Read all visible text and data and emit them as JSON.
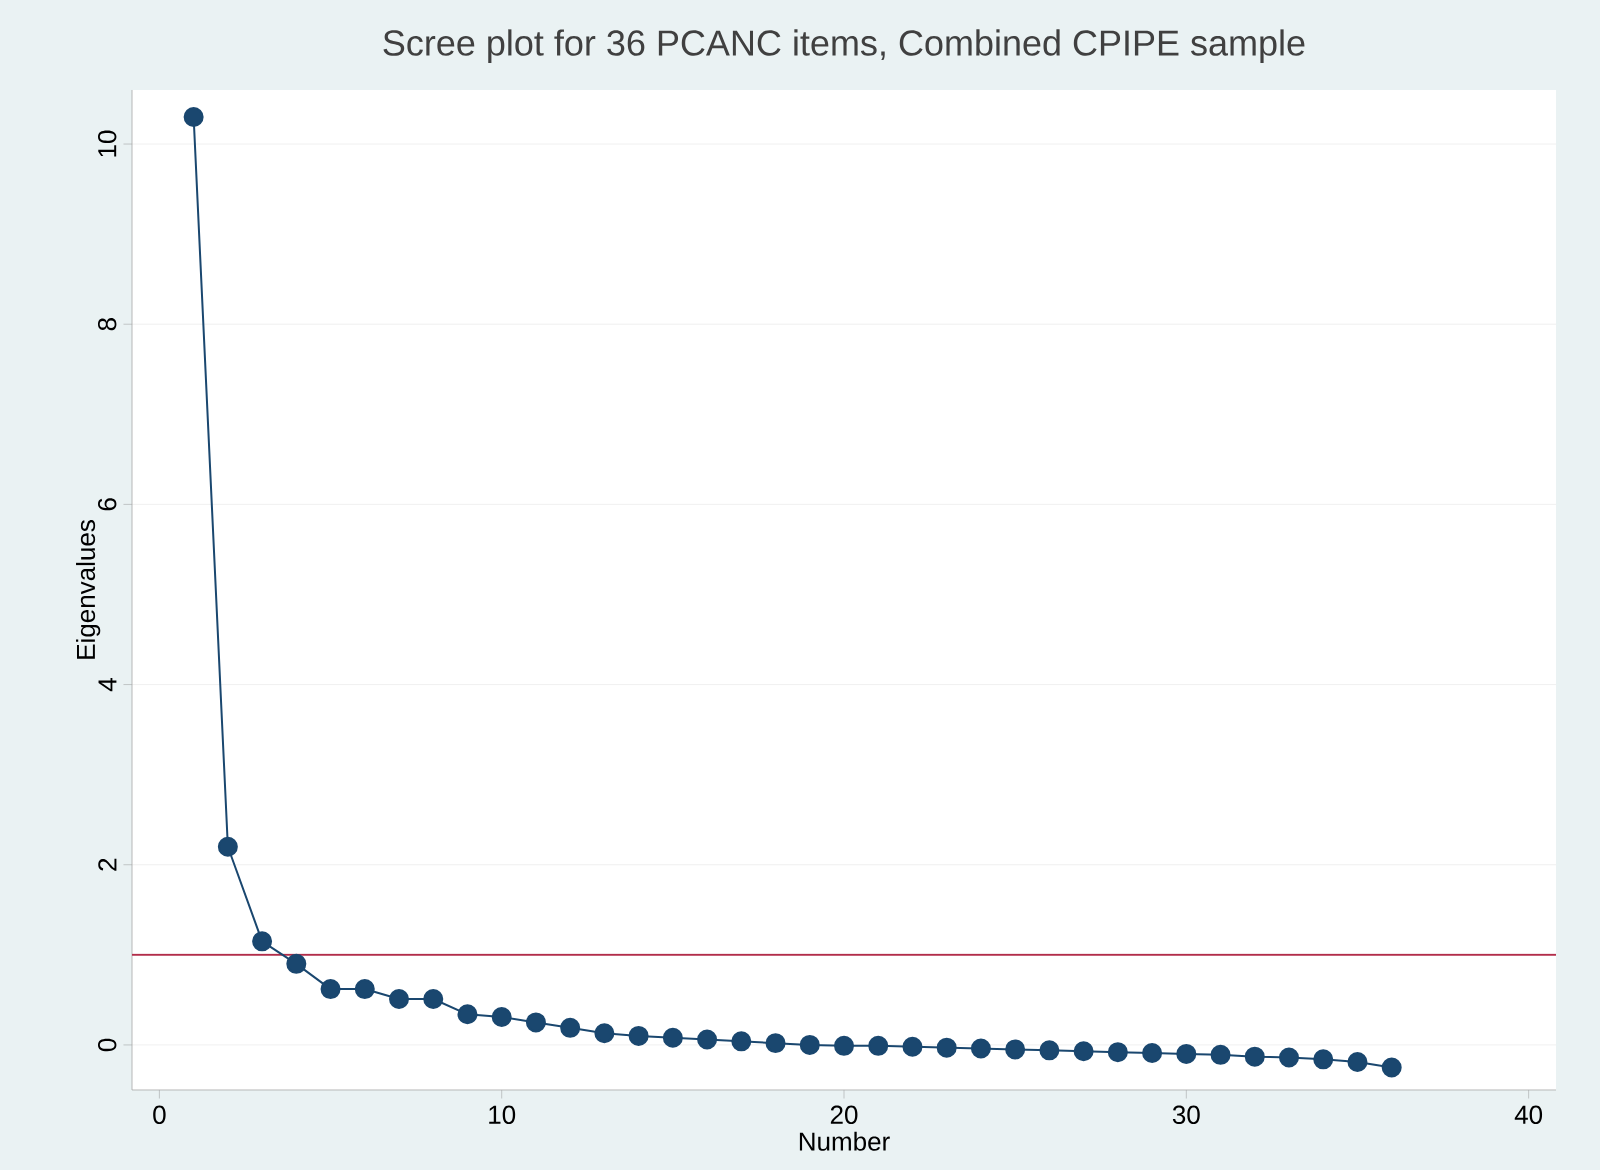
{
  "chart_data": {
    "type": "line",
    "title": "Scree plot for 36 PCANC items, Combined CPIPE sample",
    "xlabel": "Number",
    "ylabel": "Eigenvalues",
    "x": [
      1,
      2,
      3,
      4,
      5,
      6,
      7,
      8,
      9,
      10,
      11,
      12,
      13,
      14,
      15,
      16,
      17,
      18,
      19,
      20,
      21,
      22,
      23,
      24,
      25,
      26,
      27,
      28,
      29,
      30,
      31,
      32,
      33,
      34,
      35,
      36
    ],
    "series": [
      {
        "color": "#1a476f",
        "values": [
          10.3,
          2.2,
          1.15,
          0.9,
          0.62,
          0.62,
          0.51,
          0.51,
          0.34,
          0.31,
          0.25,
          0.19,
          0.13,
          0.1,
          0.08,
          0.06,
          0.04,
          0.02,
          0.0,
          -0.01,
          -0.01,
          -0.02,
          -0.03,
          -0.04,
          -0.05,
          -0.06,
          -0.07,
          -0.08,
          -0.09,
          -0.1,
          -0.11,
          -0.13,
          -0.14,
          -0.16,
          -0.19,
          -0.25
        ]
      }
    ],
    "xlim": [
      -0.8,
      40.8
    ],
    "ylim": [
      -0.5,
      10.6
    ],
    "xticks": [
      0,
      10,
      20,
      30,
      40
    ],
    "yticks": [
      0,
      2,
      4,
      6,
      8,
      10
    ],
    "ref_lines": [
      {
        "axis": "y",
        "value": 1,
        "color": "#b22d4a"
      }
    ],
    "grid": "y",
    "marker": "circle",
    "line_style": "solid"
  }
}
